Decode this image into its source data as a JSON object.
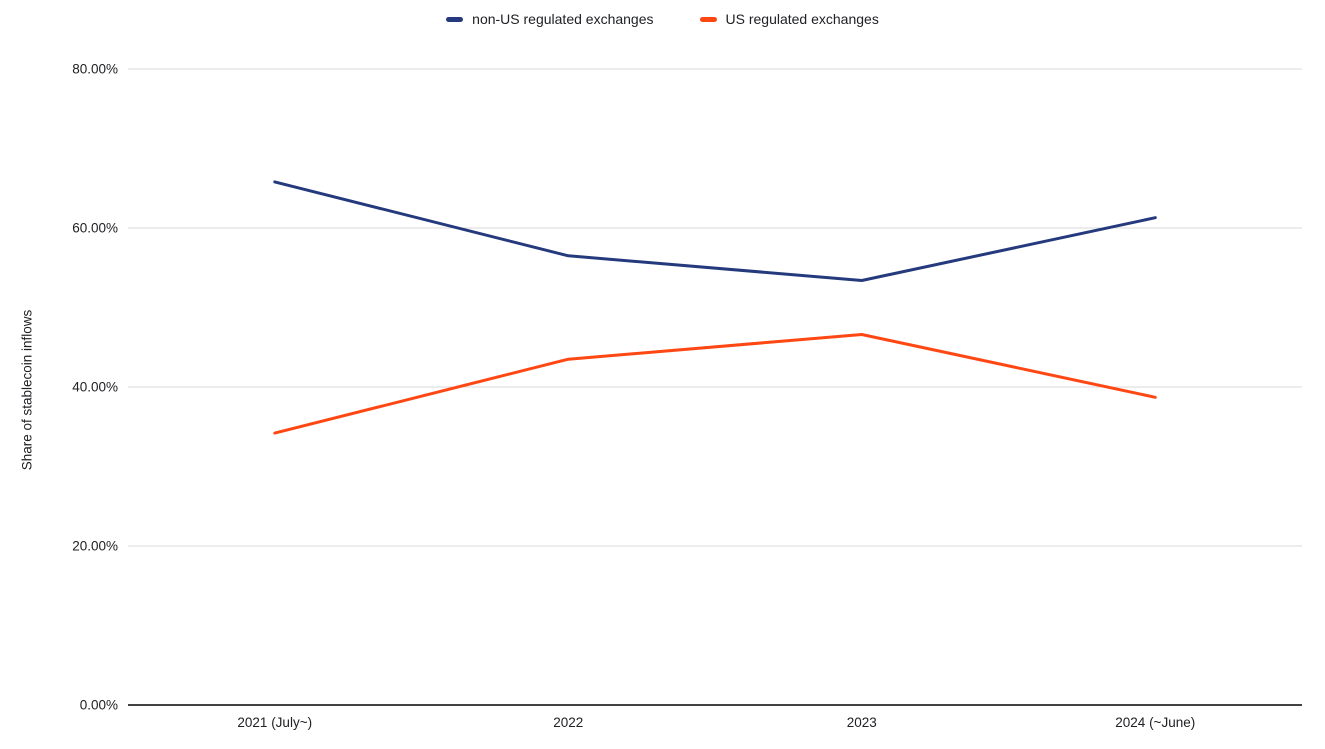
{
  "chart_data": {
    "type": "line",
    "title": "",
    "categories": [
      "2021 (July~)",
      "2022",
      "2023",
      "2024 (~June)"
    ],
    "series": [
      {
        "name": "non-US regulated exchanges",
        "color": "#253a7d",
        "values": [
          65.8,
          56.5,
          53.4,
          61.3
        ]
      },
      {
        "name": "US regulated exchanges",
        "color": "#ff4713",
        "values": [
          34.2,
          43.5,
          46.6,
          38.7
        ]
      }
    ],
    "xlabel": "",
    "ylabel": "Share of stablecoin inflows",
    "yticks": [
      {
        "value": 0,
        "label": "0.00%"
      },
      {
        "value": 20,
        "label": "20.00%"
      },
      {
        "value": 40,
        "label": "40.00%"
      },
      {
        "value": 60,
        "label": "60.00%"
      },
      {
        "value": 80,
        "label": "80.00%"
      }
    ],
    "ylim": [
      0,
      80
    ],
    "grid": true,
    "legend_position": "top",
    "colors": {
      "gridline": "#d9d9d9",
      "axis_line": "#424242",
      "text": "#202124",
      "background": "#ffffff"
    }
  }
}
